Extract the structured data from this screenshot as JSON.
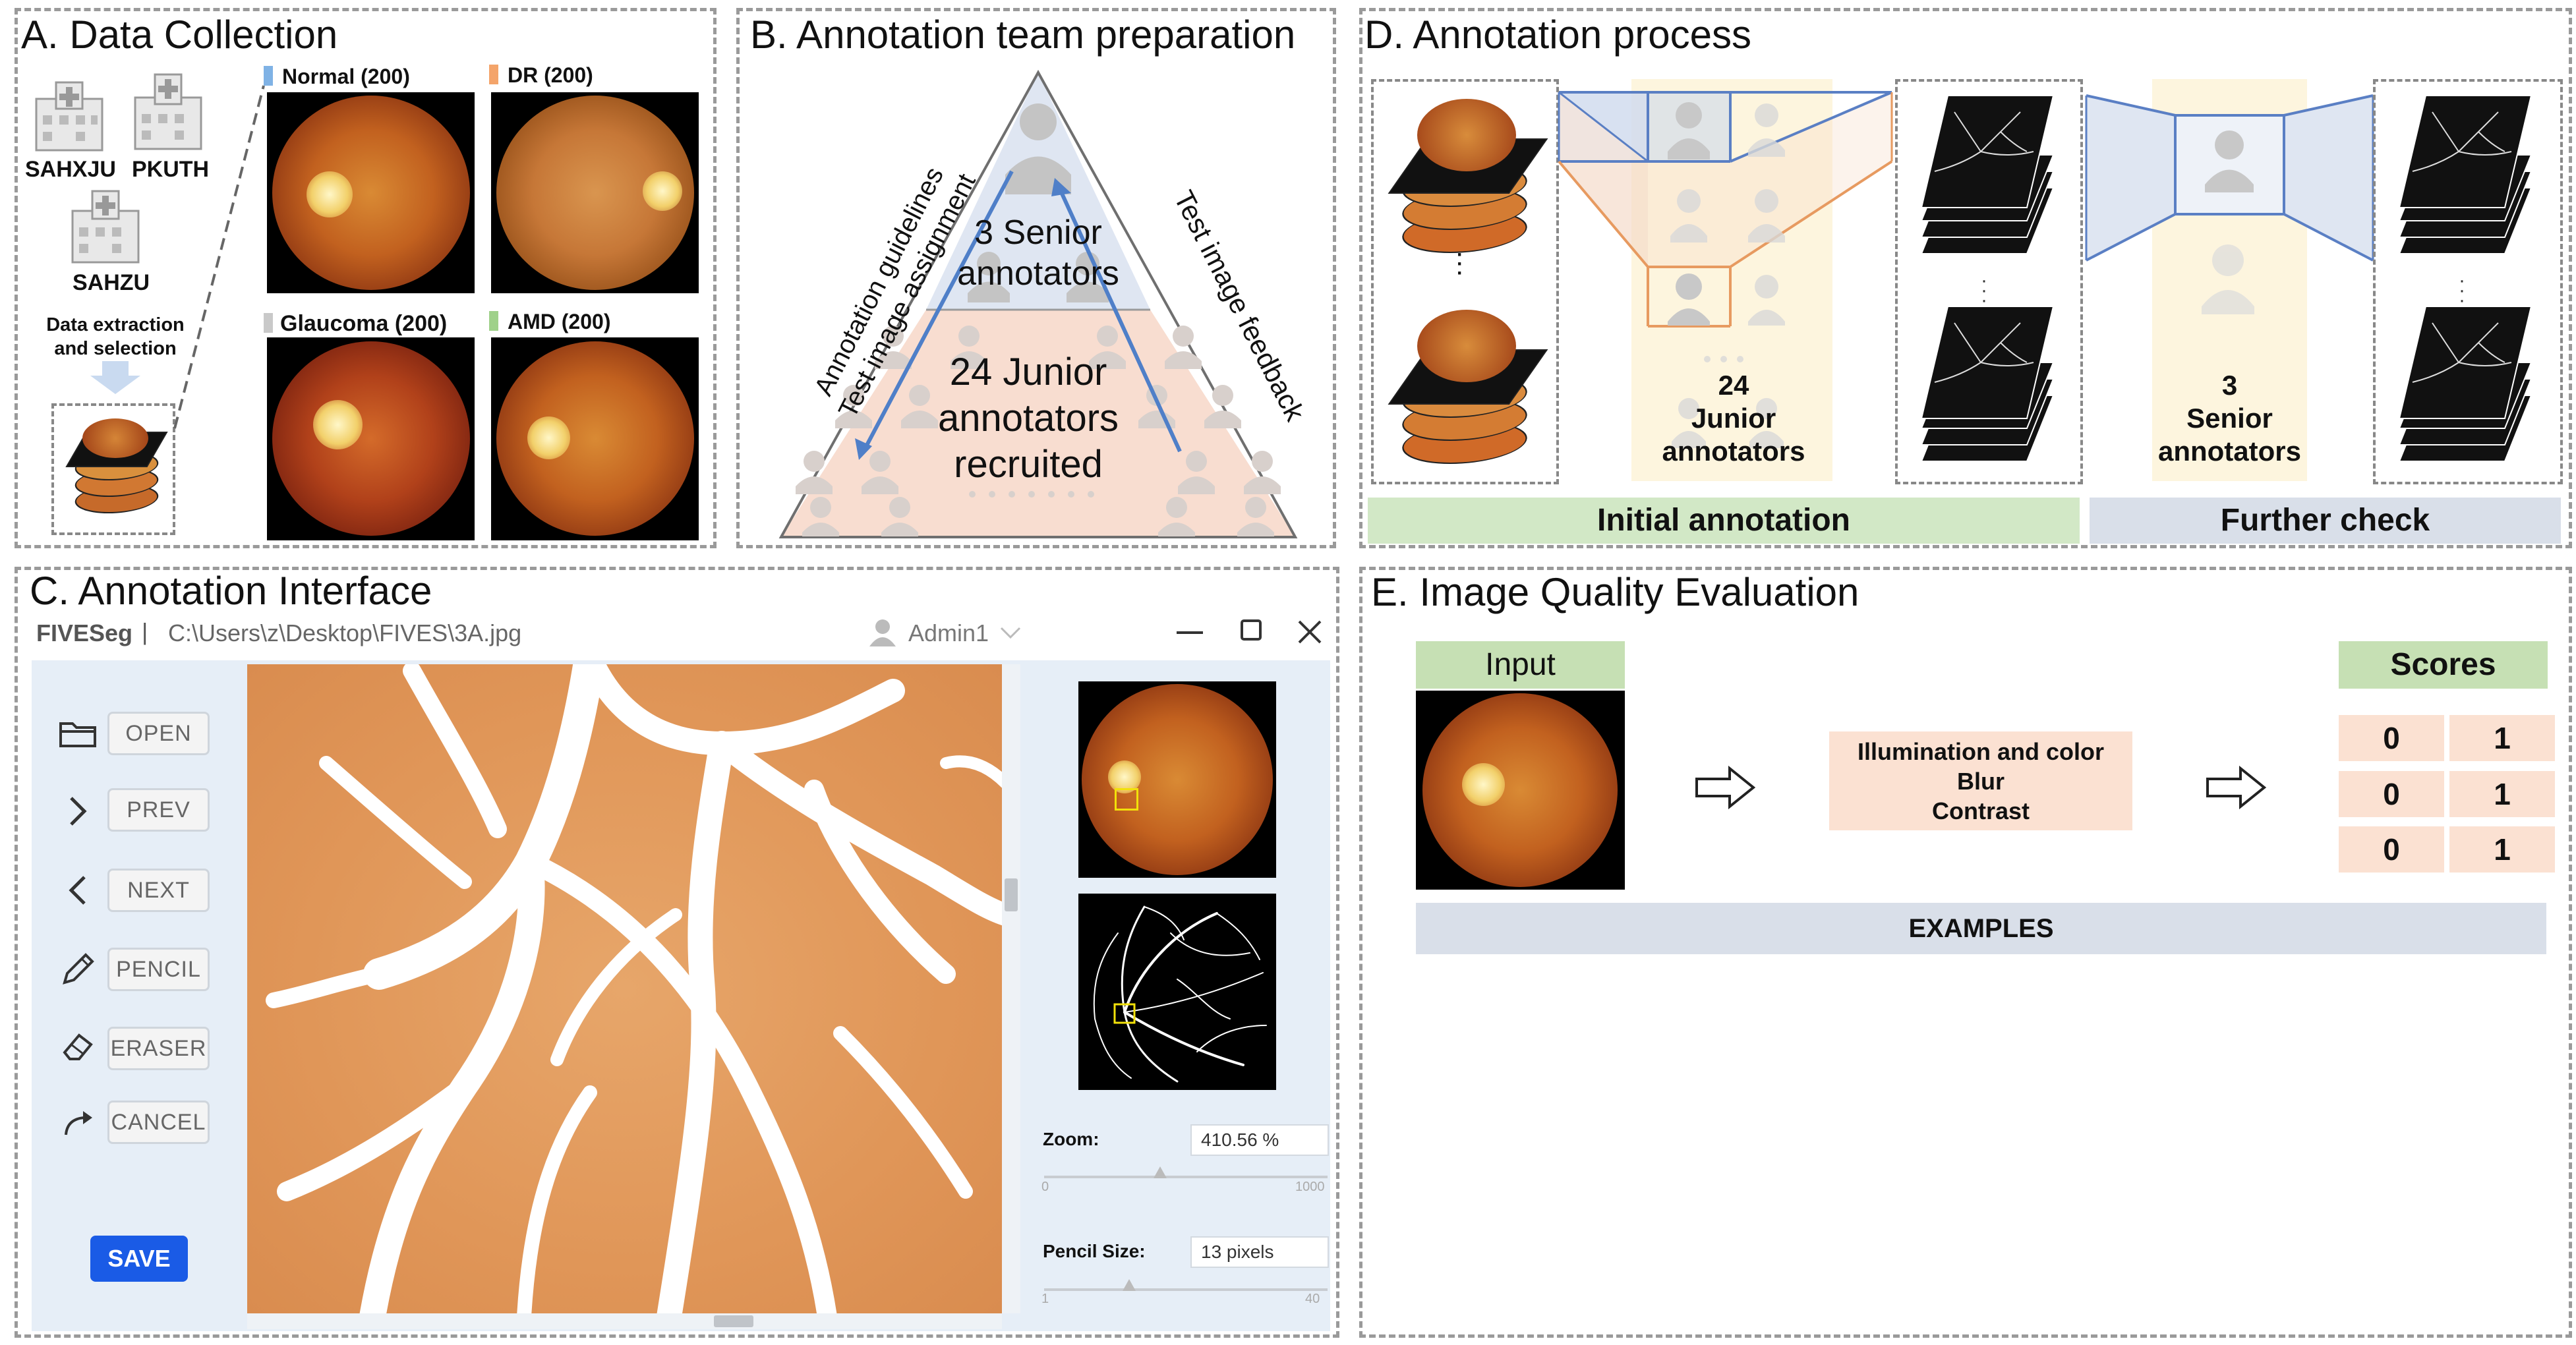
{
  "panel_a": {
    "title": "A. Data Collection",
    "hospitals": [
      "SAHXJU",
      "PKUTH",
      "SAHZU"
    ],
    "extraction_label": "Data extraction and selection",
    "categories": [
      {
        "label": "Normal (200)",
        "color": "#7fb2e5"
      },
      {
        "label": "DR (200)",
        "color": "#f4a46a"
      },
      {
        "label": "Glaucoma (200)",
        "color": "#c9c9c9"
      },
      {
        "label": "AMD (200)",
        "color": "#9fd18a"
      }
    ],
    "hospital_icon": "hospital-icon"
  },
  "panel_b": {
    "title": "B. Annotation team preparation",
    "senior": "3 Senior annotators",
    "junior": "24 Junior annotators recruited",
    "left_arrow_line1": "Annotation guidelines",
    "left_arrow_line2": "Test image assignment",
    "right_arrow": "Test image feedback",
    "top_color": "#dfe6f2",
    "bottom_color": "#f8ddd0"
  },
  "panel_c": {
    "title": "C. Annotation Interface",
    "app_name": "FIVESeg",
    "separator": "|",
    "file_path": "C:\\Users\\z\\Desktop\\FIVES\\3A.jpg",
    "user": "Admin1",
    "tools": [
      {
        "label": "OPEN",
        "icon": "folder-icon"
      },
      {
        "label": "PREV",
        "icon": "chevron-right-icon"
      },
      {
        "label": "NEXT",
        "icon": "chevron-left-icon"
      },
      {
        "label": "PENCIL",
        "icon": "pencil-icon"
      },
      {
        "label": "ERASER",
        "icon": "eraser-icon"
      },
      {
        "label": "CANCEL",
        "icon": "redo-arrow-icon"
      }
    ],
    "save_label": "SAVE",
    "zoom_label": "Zoom:",
    "zoom_value": "410.56 %",
    "zoom_min": "0",
    "zoom_max": "1000",
    "zoom_fraction": 0.41,
    "pencil_label": "Pencil Size:",
    "pencil_value": "13 pixels",
    "pencil_min": "1",
    "pencil_max": "40",
    "pencil_fraction": 0.3
  },
  "panel_d": {
    "title": "D. Annotation process",
    "junior_line1": "24",
    "junior_line2": "Junior",
    "junior_line3": "annotators",
    "senior_line1": "3",
    "senior_line2": "Senior",
    "senior_line3": "annotators",
    "initial_label": "Initial annotation",
    "further_label": "Further check",
    "ellipsis": "· · ·"
  },
  "panel_e": {
    "title": "E. Image Quality Evaluation",
    "input_label": "Input",
    "criteria": [
      "Illumination and color",
      "Blur",
      "Contrast"
    ],
    "scores_label": "Scores",
    "scores": [
      [
        "0",
        "1"
      ],
      [
        "0",
        "1"
      ],
      [
        "0",
        "1"
      ]
    ],
    "examples_label": "EXAMPLES"
  }
}
